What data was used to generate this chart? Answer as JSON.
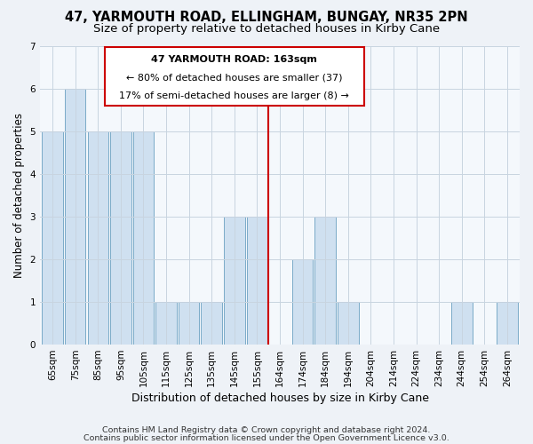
{
  "title": "47, YARMOUTH ROAD, ELLINGHAM, BUNGAY, NR35 2PN",
  "subtitle": "Size of property relative to detached houses in Kirby Cane",
  "xlabel": "Distribution of detached houses by size in Kirby Cane",
  "ylabel": "Number of detached properties",
  "bar_labels": [
    "65sqm",
    "75sqm",
    "85sqm",
    "95sqm",
    "105sqm",
    "115sqm",
    "125sqm",
    "135sqm",
    "145sqm",
    "155sqm",
    "164sqm",
    "174sqm",
    "184sqm",
    "194sqm",
    "204sqm",
    "214sqm",
    "224sqm",
    "234sqm",
    "244sqm",
    "254sqm",
    "264sqm"
  ],
  "bar_values": [
    5,
    6,
    5,
    5,
    5,
    1,
    1,
    1,
    3,
    3,
    0,
    2,
    3,
    1,
    0,
    0,
    0,
    0,
    1,
    0,
    1
  ],
  "bar_color": "#cfe0f0",
  "bar_edgecolor": "#7aaac8",
  "reference_line_x_label": "164sqm",
  "reference_line_color": "#cc0000",
  "annotation_title": "47 YARMOUTH ROAD: 163sqm",
  "annotation_line1": "← 80% of detached houses are smaller (37)",
  "annotation_line2": "17% of semi-detached houses are larger (8) →",
  "annotation_box_edgecolor": "#cc0000",
  "annotation_box_facecolor": "white",
  "ylim": [
    0,
    7
  ],
  "yticks": [
    0,
    1,
    2,
    3,
    4,
    5,
    6,
    7
  ],
  "footer1": "Contains HM Land Registry data © Crown copyright and database right 2024.",
  "footer2": "Contains public sector information licensed under the Open Government Licence v3.0.",
  "background_color": "#eef2f7",
  "plot_background_color": "#f4f8fc",
  "grid_color": "#c8d4e0",
  "title_fontsize": 10.5,
  "subtitle_fontsize": 9.5,
  "xlabel_fontsize": 9,
  "ylabel_fontsize": 8.5,
  "tick_fontsize": 7.5,
  "annotation_fontsize": 8,
  "footer_fontsize": 6.8
}
